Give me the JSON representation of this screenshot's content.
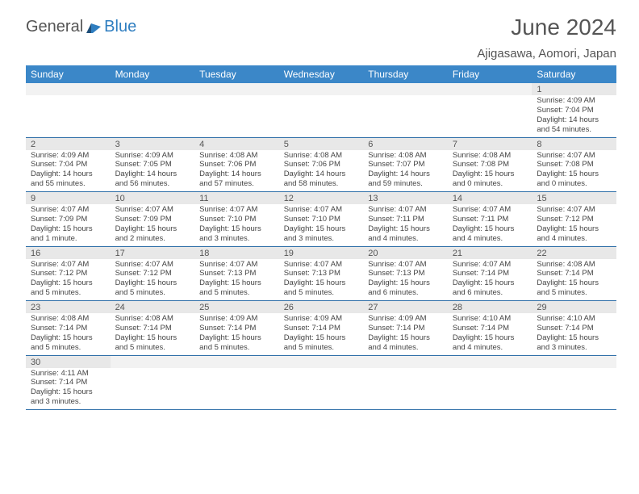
{
  "logo": {
    "text1": "General",
    "text2": "Blue"
  },
  "title": "June 2024",
  "location": "Ajigasawa, Aomori, Japan",
  "colors": {
    "header_bg": "#3b87c8",
    "header_text": "#ffffff",
    "daynum_bg": "#e8e8e8",
    "row_border": "#2f6fa8",
    "title_color": "#555555",
    "text_color": "#444444",
    "logo_blue": "#2f7ec0",
    "logo_gray": "#555555"
  },
  "weekdays": [
    "Sunday",
    "Monday",
    "Tuesday",
    "Wednesday",
    "Thursday",
    "Friday",
    "Saturday"
  ],
  "weeks": [
    [
      null,
      null,
      null,
      null,
      null,
      null,
      {
        "n": "1",
        "sr": "Sunrise: 4:09 AM",
        "ss": "Sunset: 7:04 PM",
        "dl": "Daylight: 14 hours and 54 minutes."
      }
    ],
    [
      {
        "n": "2",
        "sr": "Sunrise: 4:09 AM",
        "ss": "Sunset: 7:04 PM",
        "dl": "Daylight: 14 hours and 55 minutes."
      },
      {
        "n": "3",
        "sr": "Sunrise: 4:09 AM",
        "ss": "Sunset: 7:05 PM",
        "dl": "Daylight: 14 hours and 56 minutes."
      },
      {
        "n": "4",
        "sr": "Sunrise: 4:08 AM",
        "ss": "Sunset: 7:06 PM",
        "dl": "Daylight: 14 hours and 57 minutes."
      },
      {
        "n": "5",
        "sr": "Sunrise: 4:08 AM",
        "ss": "Sunset: 7:06 PM",
        "dl": "Daylight: 14 hours and 58 minutes."
      },
      {
        "n": "6",
        "sr": "Sunrise: 4:08 AM",
        "ss": "Sunset: 7:07 PM",
        "dl": "Daylight: 14 hours and 59 minutes."
      },
      {
        "n": "7",
        "sr": "Sunrise: 4:08 AM",
        "ss": "Sunset: 7:08 PM",
        "dl": "Daylight: 15 hours and 0 minutes."
      },
      {
        "n": "8",
        "sr": "Sunrise: 4:07 AM",
        "ss": "Sunset: 7:08 PM",
        "dl": "Daylight: 15 hours and 0 minutes."
      }
    ],
    [
      {
        "n": "9",
        "sr": "Sunrise: 4:07 AM",
        "ss": "Sunset: 7:09 PM",
        "dl": "Daylight: 15 hours and 1 minute."
      },
      {
        "n": "10",
        "sr": "Sunrise: 4:07 AM",
        "ss": "Sunset: 7:09 PM",
        "dl": "Daylight: 15 hours and 2 minutes."
      },
      {
        "n": "11",
        "sr": "Sunrise: 4:07 AM",
        "ss": "Sunset: 7:10 PM",
        "dl": "Daylight: 15 hours and 3 minutes."
      },
      {
        "n": "12",
        "sr": "Sunrise: 4:07 AM",
        "ss": "Sunset: 7:10 PM",
        "dl": "Daylight: 15 hours and 3 minutes."
      },
      {
        "n": "13",
        "sr": "Sunrise: 4:07 AM",
        "ss": "Sunset: 7:11 PM",
        "dl": "Daylight: 15 hours and 4 minutes."
      },
      {
        "n": "14",
        "sr": "Sunrise: 4:07 AM",
        "ss": "Sunset: 7:11 PM",
        "dl": "Daylight: 15 hours and 4 minutes."
      },
      {
        "n": "15",
        "sr": "Sunrise: 4:07 AM",
        "ss": "Sunset: 7:12 PM",
        "dl": "Daylight: 15 hours and 4 minutes."
      }
    ],
    [
      {
        "n": "16",
        "sr": "Sunrise: 4:07 AM",
        "ss": "Sunset: 7:12 PM",
        "dl": "Daylight: 15 hours and 5 minutes."
      },
      {
        "n": "17",
        "sr": "Sunrise: 4:07 AM",
        "ss": "Sunset: 7:12 PM",
        "dl": "Daylight: 15 hours and 5 minutes."
      },
      {
        "n": "18",
        "sr": "Sunrise: 4:07 AM",
        "ss": "Sunset: 7:13 PM",
        "dl": "Daylight: 15 hours and 5 minutes."
      },
      {
        "n": "19",
        "sr": "Sunrise: 4:07 AM",
        "ss": "Sunset: 7:13 PM",
        "dl": "Daylight: 15 hours and 5 minutes."
      },
      {
        "n": "20",
        "sr": "Sunrise: 4:07 AM",
        "ss": "Sunset: 7:13 PM",
        "dl": "Daylight: 15 hours and 6 minutes."
      },
      {
        "n": "21",
        "sr": "Sunrise: 4:07 AM",
        "ss": "Sunset: 7:14 PM",
        "dl": "Daylight: 15 hours and 6 minutes."
      },
      {
        "n": "22",
        "sr": "Sunrise: 4:08 AM",
        "ss": "Sunset: 7:14 PM",
        "dl": "Daylight: 15 hours and 5 minutes."
      }
    ],
    [
      {
        "n": "23",
        "sr": "Sunrise: 4:08 AM",
        "ss": "Sunset: 7:14 PM",
        "dl": "Daylight: 15 hours and 5 minutes."
      },
      {
        "n": "24",
        "sr": "Sunrise: 4:08 AM",
        "ss": "Sunset: 7:14 PM",
        "dl": "Daylight: 15 hours and 5 minutes."
      },
      {
        "n": "25",
        "sr": "Sunrise: 4:09 AM",
        "ss": "Sunset: 7:14 PM",
        "dl": "Daylight: 15 hours and 5 minutes."
      },
      {
        "n": "26",
        "sr": "Sunrise: 4:09 AM",
        "ss": "Sunset: 7:14 PM",
        "dl": "Daylight: 15 hours and 5 minutes."
      },
      {
        "n": "27",
        "sr": "Sunrise: 4:09 AM",
        "ss": "Sunset: 7:14 PM",
        "dl": "Daylight: 15 hours and 4 minutes."
      },
      {
        "n": "28",
        "sr": "Sunrise: 4:10 AM",
        "ss": "Sunset: 7:14 PM",
        "dl": "Daylight: 15 hours and 4 minutes."
      },
      {
        "n": "29",
        "sr": "Sunrise: 4:10 AM",
        "ss": "Sunset: 7:14 PM",
        "dl": "Daylight: 15 hours and 3 minutes."
      }
    ],
    [
      {
        "n": "30",
        "sr": "Sunrise: 4:11 AM",
        "ss": "Sunset: 7:14 PM",
        "dl": "Daylight: 15 hours and 3 minutes."
      },
      null,
      null,
      null,
      null,
      null,
      null
    ]
  ]
}
